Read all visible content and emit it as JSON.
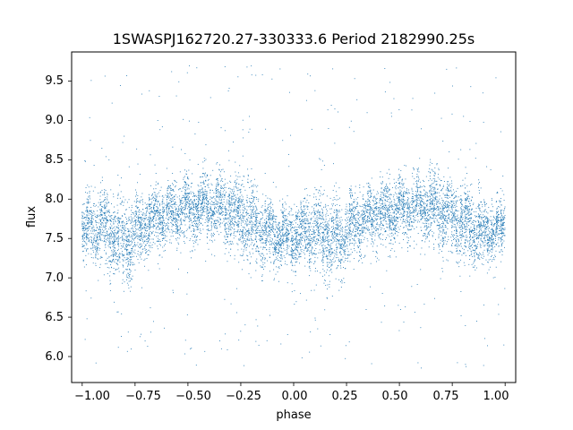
{
  "chart_data": {
    "type": "scatter",
    "title": "1SWASPJ162720.27-330333.6 Period 2182990.25s",
    "xlabel": "phase",
    "ylabel": "flux",
    "xlim": [
      -1.05,
      1.05
    ],
    "ylim": [
      5.67,
      9.87
    ],
    "x_ticks": [
      -1.0,
      -0.75,
      -0.5,
      -0.25,
      0.0,
      0.25,
      0.5,
      0.75,
      1.0
    ],
    "x_tick_labels": [
      "−1.00",
      "−0.75",
      "−0.50",
      "−0.25",
      "0.00",
      "0.25",
      "0.50",
      "0.75",
      "1.00"
    ],
    "y_ticks": [
      6.0,
      6.5,
      7.0,
      7.5,
      8.0,
      8.5,
      9.0,
      9.5
    ],
    "y_tick_labels": [
      "6.0",
      "6.5",
      "7.0",
      "7.5",
      "8.0",
      "8.5",
      "9.0",
      "9.5"
    ],
    "grid": false,
    "point_color": "#1f77b4",
    "series": [
      {
        "x_range": [
          -1.0,
          1.0
        ],
        "approx_points": 9000,
        "profile_phase": [
          -1.0,
          -0.9,
          -0.8,
          -0.75,
          -0.7,
          -0.6,
          -0.5,
          -0.4,
          -0.3,
          -0.2,
          -0.1,
          0.0,
          0.1,
          0.2,
          0.25,
          0.3,
          0.4,
          0.5,
          0.6,
          0.7,
          0.8,
          0.9,
          1.0
        ],
        "profile_flux_median": [
          7.62,
          7.65,
          7.45,
          7.55,
          7.7,
          7.82,
          7.88,
          7.92,
          7.85,
          7.7,
          7.55,
          7.55,
          7.6,
          7.45,
          7.55,
          7.7,
          7.82,
          7.88,
          7.92,
          7.85,
          7.7,
          7.55,
          7.62
        ],
        "profile_flux_spread": [
          0.22,
          0.3,
          0.35,
          0.28,
          0.26,
          0.25,
          0.24,
          0.25,
          0.3,
          0.32,
          0.26,
          0.24,
          0.3,
          0.35,
          0.28,
          0.26,
          0.25,
          0.24,
          0.25,
          0.3,
          0.32,
          0.26,
          0.22
        ],
        "outlier_fraction": 0.04,
        "outlier_range": [
          5.85,
          9.7
        ]
      }
    ]
  }
}
